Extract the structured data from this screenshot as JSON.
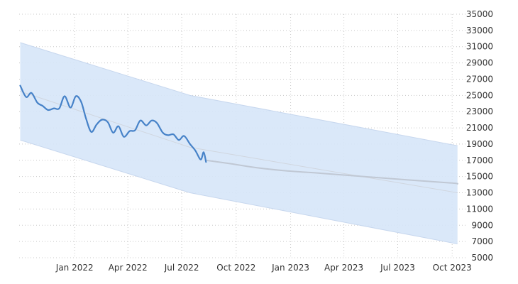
{
  "chart_data": {
    "type": "line",
    "title": "",
    "xlabel": "",
    "ylabel": "",
    "ylim": [
      5000,
      35000
    ],
    "xlim": [
      "2021-10-01",
      "2023-11-01"
    ],
    "y_axis_position": "right",
    "grid": true,
    "legend": "none",
    "y_ticks": [
      5000,
      7000,
      9000,
      11000,
      13000,
      15000,
      17000,
      19000,
      21000,
      23000,
      25000,
      27000,
      29000,
      31000,
      33000,
      35000
    ],
    "x_ticks": [
      {
        "label": "Jan 2022",
        "date": "2022-01-01"
      },
      {
        "label": "Apr 2022",
        "date": "2022-04-01"
      },
      {
        "label": "Jul 2022",
        "date": "2022-07-01"
      },
      {
        "label": "Oct 2022",
        "date": "2022-10-01"
      },
      {
        "label": "Jan 2023",
        "date": "2023-01-01"
      },
      {
        "label": "Apr 2023",
        "date": "2023-04-01"
      },
      {
        "label": "Jul 2023",
        "date": "2023-07-01"
      },
      {
        "label": "Oct 2023",
        "date": "2023-10-01"
      }
    ],
    "series": [
      {
        "role": "actual",
        "color": "#4682c8",
        "points": [
          [
            "2021-10-01",
            26200
          ],
          [
            "2021-10-11",
            24800
          ],
          [
            "2021-10-20",
            25300
          ],
          [
            "2021-10-30",
            24100
          ],
          [
            "2021-11-08",
            23700
          ],
          [
            "2021-11-17",
            23200
          ],
          [
            "2021-11-27",
            23400
          ],
          [
            "2021-12-06",
            23400
          ],
          [
            "2021-12-15",
            24900
          ],
          [
            "2021-12-25",
            23500
          ],
          [
            "2022-01-03",
            24900
          ],
          [
            "2022-01-12",
            24200
          ],
          [
            "2022-01-20",
            22200
          ],
          [
            "2022-01-29",
            20500
          ],
          [
            "2022-02-07",
            21400
          ],
          [
            "2022-02-16",
            22000
          ],
          [
            "2022-02-26",
            21700
          ],
          [
            "2022-03-07",
            20400
          ],
          [
            "2022-03-16",
            21200
          ],
          [
            "2022-03-25",
            19900
          ],
          [
            "2022-04-04",
            20600
          ],
          [
            "2022-04-13",
            20700
          ],
          [
            "2022-04-22",
            21900
          ],
          [
            "2022-05-02",
            21300
          ],
          [
            "2022-05-11",
            21900
          ],
          [
            "2022-05-20",
            21600
          ],
          [
            "2022-05-30",
            20400
          ],
          [
            "2022-06-08",
            20100
          ],
          [
            "2022-06-17",
            20200
          ],
          [
            "2022-06-26",
            19500
          ],
          [
            "2022-07-05",
            20000
          ],
          [
            "2022-07-15",
            19000
          ],
          [
            "2022-07-24",
            18200
          ],
          [
            "2022-08-02",
            17100
          ],
          [
            "2022-08-07",
            18000
          ],
          [
            "2022-08-11",
            16800
          ]
        ]
      },
      {
        "role": "forecast",
        "color": "#c0c8d4",
        "points": [
          [
            "2022-08-11",
            17000
          ],
          [
            "2022-09-20",
            16600
          ],
          [
            "2022-11-04",
            16100
          ],
          [
            "2022-12-25",
            15700
          ],
          [
            "2023-02-22",
            15400
          ],
          [
            "2023-05-04",
            15000
          ],
          [
            "2023-07-16",
            14600
          ],
          [
            "2023-10-01",
            14200
          ],
          [
            "2023-10-10",
            14100
          ]
        ]
      },
      {
        "role": "trend",
        "color": "#d0d6df",
        "points": [
          [
            "2021-10-01",
            25500
          ],
          [
            "2022-07-15",
            18600
          ],
          [
            "2023-10-10",
            13000
          ]
        ]
      }
    ],
    "bands": [
      {
        "role": "confidence",
        "fill": "#d6e6f8",
        "edge": "#c7d7ee",
        "upper": [
          [
            "2021-10-01",
            31500
          ],
          [
            "2022-07-15",
            25000
          ],
          [
            "2023-10-10",
            18800
          ]
        ],
        "lower": [
          [
            "2021-10-01",
            19500
          ],
          [
            "2022-07-15",
            13000
          ],
          [
            "2023-10-10",
            6700
          ]
        ]
      }
    ]
  }
}
